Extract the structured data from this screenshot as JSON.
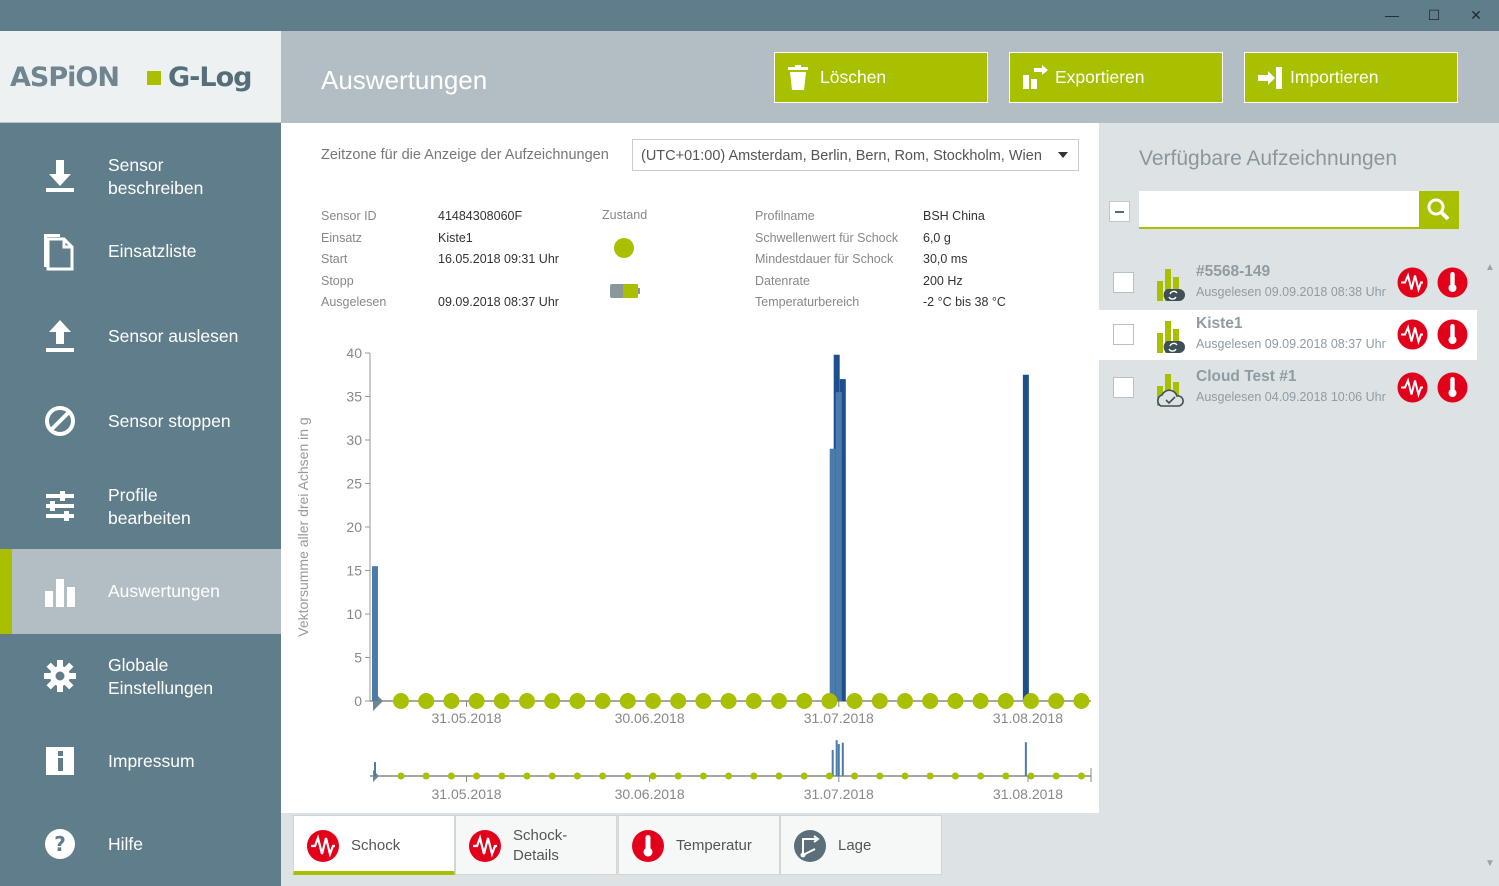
{
  "window": {
    "minimize_glyph": "—",
    "maximize_glyph": "☐",
    "close_glyph": "✕"
  },
  "logo": {
    "left": "ASPiON",
    "right": "G-Log"
  },
  "colors": {
    "accent": "#a8c000",
    "sidebar": "#607d8b",
    "header": "#b2bec3",
    "panel": "#dde3e5",
    "red": "#e3001b",
    "bar": "#4a7bab",
    "bar_dark": "#1e4f8c"
  },
  "sidebar": {
    "items": [
      {
        "label": "Sensor\nbeschreiben",
        "icon": "download-icon"
      },
      {
        "label": "Einsatzliste",
        "icon": "document-icon"
      },
      {
        "label": "Sensor auslesen",
        "icon": "upload-icon"
      },
      {
        "label": "Sensor stoppen",
        "icon": "stop-icon"
      },
      {
        "label": "Profile\nbearbeiten",
        "icon": "sliders-icon"
      },
      {
        "label": "Auswertungen",
        "icon": "bar-chart-icon",
        "active": true
      },
      {
        "label": "Globale\nEinstellungen",
        "icon": "gear-icon"
      },
      {
        "label": "Impressum",
        "icon": "info-icon"
      },
      {
        "label": "Hilfe",
        "icon": "help-icon"
      }
    ]
  },
  "header": {
    "title": "Auswertungen",
    "delete_label": "Löschen",
    "export_label": "Exportieren",
    "import_label": "Importieren"
  },
  "main": {
    "timezone_label": "Zeitzone für die Anzeige der Aufzeichnungen",
    "timezone_value": "(UTC+01:00) Amsterdam, Berlin, Bern, Rom, Stockholm, Wien",
    "sensor_info": [
      {
        "key": "Sensor ID",
        "value": "41484308060F"
      },
      {
        "key": "Einsatz",
        "value": "Kiste1"
      },
      {
        "key": "Start",
        "value": "16.05.2018 09:31 Uhr"
      },
      {
        "key": "Stopp",
        "value": ""
      },
      {
        "key": "Ausgelesen",
        "value": "09.09.2018 08:37 Uhr"
      }
    ],
    "state_label": "Zustand",
    "profile_info": [
      {
        "key": "Profilname",
        "value": "BSH China"
      },
      {
        "key": "Schwellenwert für Schock",
        "value": "6,0 g"
      },
      {
        "key": "Mindestdauer für Schock",
        "value": "30,0 ms"
      },
      {
        "key": "Datenrate",
        "value": "200 Hz"
      },
      {
        "key": "Temperaturbereich",
        "value": "-2 °C  bis  38 °C"
      }
    ]
  },
  "chart_data": {
    "type": "bar",
    "ylabel": "Vektorsumme aller drei Achsen in g",
    "ylim": [
      0,
      40
    ],
    "yticks": [
      0,
      5,
      10,
      15,
      20,
      25,
      30,
      35,
      40
    ],
    "x_range": [
      "16.05.2018",
      "09.09.2018"
    ],
    "x_ticks": [
      "31.05.2018",
      "30.06.2018",
      "31.07.2018",
      "31.08.2018"
    ],
    "bars": [
      {
        "date": "16.05.2018",
        "value": 15.5
      },
      {
        "date": "30.07.2018",
        "value": 39.8
      },
      {
        "date": "30.07.2018",
        "value": 29
      },
      {
        "date": "31.07.2018",
        "value": 37
      },
      {
        "date": "31.07.2018",
        "value": 35.5
      },
      {
        "date": "30.08.2018",
        "value": 37.5
      }
    ],
    "markers": {
      "series": "green-dots",
      "y": 0
    },
    "overview": true
  },
  "tabs": [
    {
      "label": "Schock",
      "icon": "shock-icon",
      "active": true
    },
    {
      "label": "Schock-\nDetails",
      "icon": "shock-details-icon"
    },
    {
      "label": "Temperatur",
      "icon": "thermometer-icon"
    },
    {
      "label": "Lage",
      "icon": "orientation-icon"
    }
  ],
  "right": {
    "title": "Verfügbare Aufzeichnungen",
    "search_placeholder": "",
    "records": [
      {
        "name": "#5568-149",
        "sub": "Ausgelesen  09.09.2018 08:38 Uhr",
        "status": "sync"
      },
      {
        "name": "Kiste1",
        "sub": "Ausgelesen  09.09.2018 08:37 Uhr",
        "status": "sync",
        "selected": true
      },
      {
        "name": "Cloud Test #1",
        "sub": "Ausgelesen  04.09.2018 10:06 Uhr",
        "status": "cloud-check"
      }
    ]
  }
}
